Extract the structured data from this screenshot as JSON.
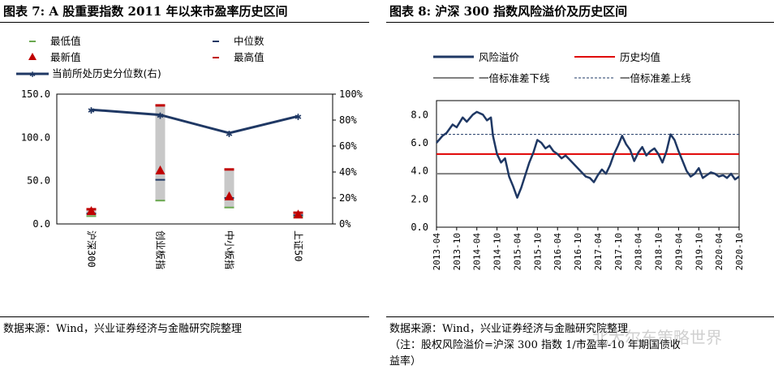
{
  "left_panel": {
    "title": "图表 7: A 股重要指数 2011 年以来市盈率历史区间",
    "source": "数据来源：Wind，兴业证券经济与金融研究院整理"
  },
  "right_panel": {
    "title": "图表 8: 沪深 300 指数风险溢价及历史区间",
    "source": "数据来源：Wind，兴业证券经济与金融研究院整理",
    "note_line1": "（注：股权风险溢价=沪深 300 指数 1/市盈率-10 年期国债收",
    "note_line2": "益率）"
  },
  "watermark": "北大尔东策略世界",
  "chart_data": [
    {
      "type": "bar",
      "categories": [
        "沪深300",
        "创业板指",
        "中小板指",
        "上证50"
      ],
      "legend": {
        "min": "最低值",
        "median": "中位数",
        "latest": "最新值",
        "max": "最高值",
        "percentile": "当前所处历史分位数(右)"
      },
      "min_values": [
        9,
        27,
        19,
        8
      ],
      "median_values": [
        12,
        51,
        30,
        10
      ],
      "latest_values": [
        15,
        62,
        32,
        11
      ],
      "max_values": [
        17,
        137,
        63,
        13
      ],
      "percentile_values": [
        88,
        84,
        70,
        83
      ],
      "y_left": {
        "lim": [
          0,
          150
        ],
        "ticks": [
          "0.0",
          "50.0",
          "100.0",
          "150.0"
        ]
      },
      "y_right": {
        "lim": [
          0,
          100
        ],
        "ticks": [
          "0%",
          "20%",
          "40%",
          "60%",
          "80%",
          "100%"
        ]
      },
      "colors": {
        "min": "#6aa84f",
        "median": "#1f3864",
        "latest": "#c00000",
        "max": "#c00000",
        "range": "#c8c8c8",
        "percentile": "#1f3864"
      }
    },
    {
      "type": "line",
      "legend": {
        "premium": "风险溢价",
        "mean": "历史均值",
        "lower": "一倍标准差下线",
        "upper": "一倍标准差上线"
      },
      "x_ticks": [
        "2013-04",
        "2013-10",
        "2014-04",
        "2014-10",
        "2015-04",
        "2015-10",
        "2016-04",
        "2016-10",
        "2017-04",
        "2017-10",
        "2018-04",
        "2018-10",
        "2019-04",
        "2019-10",
        "2020-04",
        "2020-10"
      ],
      "y": {
        "lim": [
          0,
          9
        ],
        "ticks": [
          "0.0",
          "2.0",
          "4.0",
          "6.0",
          "8.0"
        ]
      },
      "mean": 5.2,
      "upper": 6.6,
      "lower": 3.8,
      "series": [
        {
          "name": "风险溢价",
          "x": [
            0,
            0.3,
            0.5,
            0.8,
            1.0,
            1.3,
            1.5,
            1.8,
            2.0,
            2.3,
            2.5,
            2.7,
            2.8,
            3.0,
            3.2,
            3.4,
            3.6,
            3.8,
            4.0,
            4.2,
            4.4,
            4.6,
            4.8,
            5.0,
            5.2,
            5.4,
            5.6,
            5.8,
            6.0,
            6.2,
            6.4,
            6.6,
            6.8,
            7.0,
            7.2,
            7.4,
            7.6,
            7.8,
            8.0,
            8.2,
            8.4,
            8.6,
            8.8,
            9.0,
            9.2,
            9.4,
            9.6,
            9.8,
            10.0,
            10.2,
            10.4,
            10.6,
            10.8,
            11.0,
            11.2,
            11.4,
            11.6,
            11.8,
            12.0,
            12.2,
            12.4,
            12.6,
            12.8,
            13.0,
            13.2,
            13.4,
            13.6,
            13.8,
            14.0,
            14.2,
            14.4,
            14.6,
            14.8,
            15.0
          ],
          "y": [
            6.0,
            6.5,
            6.7,
            7.3,
            7.1,
            7.8,
            7.5,
            8.0,
            8.2,
            8.0,
            7.6,
            7.8,
            6.5,
            5.2,
            4.6,
            4.9,
            3.6,
            2.9,
            2.1,
            2.8,
            3.7,
            4.6,
            5.3,
            6.2,
            6.0,
            5.6,
            5.8,
            5.4,
            5.2,
            4.9,
            5.1,
            4.8,
            4.5,
            4.2,
            3.9,
            3.6,
            3.5,
            3.2,
            3.7,
            4.1,
            3.8,
            4.4,
            5.2,
            5.8,
            6.5,
            5.9,
            5.5,
            4.7,
            5.3,
            5.7,
            5.1,
            5.4,
            5.6,
            5.2,
            4.6,
            5.4,
            6.6,
            6.2,
            5.4,
            4.7,
            4.0,
            3.6,
            3.8,
            4.2,
            3.5,
            3.7,
            3.9,
            3.8,
            3.6,
            3.7,
            3.5,
            3.8,
            3.4,
            3.6
          ]
        }
      ]
    }
  ]
}
